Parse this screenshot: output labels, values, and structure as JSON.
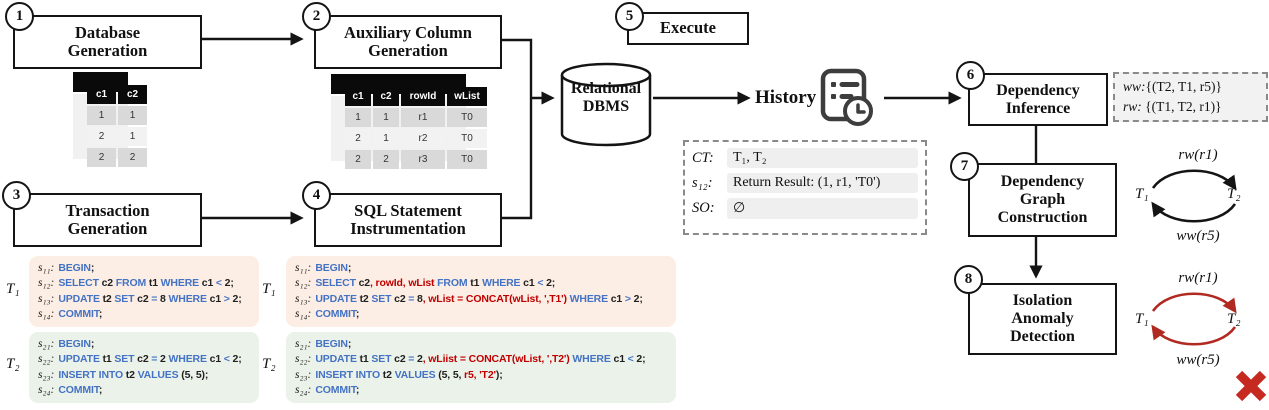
{
  "colors": {
    "kw": "#4472c4",
    "ident": "#1f1f1f",
    "add": "#c00000",
    "t1bg": "#fceee4",
    "t2bg": "#ebf2e9",
    "graphred": "#b02a21",
    "xred": "#c5291f"
  },
  "boxes": {
    "b1": {
      "num": "1",
      "l1": "Database",
      "l2": "Generation"
    },
    "b2": {
      "num": "2",
      "l1": "Auxiliary Column",
      "l2": "Generation"
    },
    "b3": {
      "num": "3",
      "l1": "Transaction",
      "l2": "Generation"
    },
    "b4": {
      "num": "4",
      "l1": "SQL Statement",
      "l2": "Instrumentation"
    },
    "b5": {
      "num": "5",
      "l1": "Execute"
    },
    "b6": {
      "num": "6",
      "l1": "Dependency",
      "l2": "Inference"
    },
    "b7": {
      "num": "7",
      "l1": "Dependency",
      "l2": "Graph",
      "l3": "Construction"
    },
    "b8": {
      "num": "8",
      "l1": "Isolation",
      "l2": "Anomaly",
      "l3": "Detection"
    }
  },
  "dbms": {
    "l1": "Relational",
    "l2": "DBMS"
  },
  "history_label": "History",
  "tables": {
    "db": {
      "headers": [
        "c1",
        "c2"
      ],
      "rows": [
        [
          "1",
          "1"
        ],
        [
          "2",
          "1"
        ],
        [
          "2",
          "2"
        ]
      ]
    },
    "aux": {
      "headers": [
        "c1",
        "c2",
        "rowId",
        "wList"
      ],
      "rows": [
        [
          "1",
          "1",
          "r1",
          "T0"
        ],
        [
          "2",
          "1",
          "r2",
          "T0"
        ],
        [
          "2",
          "2",
          "r3",
          "T0"
        ]
      ]
    }
  },
  "deps": {
    "ww_label": "ww:",
    "ww_set": "{(T2, T1, r5)}",
    "rw_label": "rw:",
    "rw_set": " {(T1, T2, r1)}"
  },
  "ct_box": {
    "rows": [
      {
        "label": "CT:",
        "value": "T₁, T₂"
      },
      {
        "label": "s₁₂:",
        "value": "Return Result: (1, r1, 'T0')"
      },
      {
        "label": "SO:",
        "value": "∅"
      }
    ]
  },
  "graphs": {
    "black": {
      "top": "rw(r1)",
      "bottom": "ww(r5)",
      "left": "T₁",
      "right": "T₂"
    },
    "red": {
      "top": "rw(r1)",
      "bottom": "ww(r5)",
      "left": "T₁",
      "right": "T₂"
    }
  },
  "sql": {
    "left_t1": {
      "label": "T₁",
      "lines": [
        {
          "s": "s₁₁:",
          "toks": [
            [
              "kw",
              "BEGIN"
            ],
            [
              "id",
              ";"
            ]
          ]
        },
        {
          "s": "s₁₂:",
          "toks": [
            [
              "kw",
              "SELECT "
            ],
            [
              "id",
              "c2 "
            ],
            [
              "kw",
              "FROM "
            ],
            [
              "id",
              "t1 "
            ],
            [
              "kw",
              "WHERE "
            ],
            [
              "id",
              "c1 "
            ],
            [
              "kw",
              "< "
            ],
            [
              "id",
              "2;"
            ]
          ]
        },
        {
          "s": "s₁₃:",
          "toks": [
            [
              "kw",
              "UPDATE "
            ],
            [
              "id",
              "t2 "
            ],
            [
              "kw",
              "SET "
            ],
            [
              "id",
              "c2 "
            ],
            [
              "kw",
              "= "
            ],
            [
              "id",
              "8 "
            ],
            [
              "kw",
              "WHERE "
            ],
            [
              "id",
              "c1 "
            ],
            [
              "kw",
              "> "
            ],
            [
              "id",
              "2;"
            ]
          ]
        },
        {
          "s": "s₁₄:",
          "toks": [
            [
              "kw",
              "COMMIT"
            ],
            [
              "id",
              ";"
            ]
          ]
        }
      ]
    },
    "left_t2": {
      "label": "T₂",
      "lines": [
        {
          "s": "s₂₁:",
          "toks": [
            [
              "kw",
              "BEGIN"
            ],
            [
              "id",
              ";"
            ]
          ]
        },
        {
          "s": "s₂₂:",
          "toks": [
            [
              "kw",
              "UPDATE "
            ],
            [
              "id",
              "t1 "
            ],
            [
              "kw",
              "SET "
            ],
            [
              "id",
              "c2 "
            ],
            [
              "kw",
              "= "
            ],
            [
              "id",
              "2 "
            ],
            [
              "kw",
              "WHERE "
            ],
            [
              "id",
              "c1 "
            ],
            [
              "kw",
              "< "
            ],
            [
              "id",
              "2;"
            ]
          ]
        },
        {
          "s": "s₂₃:",
          "toks": [
            [
              "kw",
              "INSERT INTO "
            ],
            [
              "id",
              "t2 "
            ],
            [
              "kw",
              "VALUES "
            ],
            [
              "id",
              "(5, 5);"
            ]
          ]
        },
        {
          "s": "s₂₄:",
          "toks": [
            [
              "kw",
              "COMMIT"
            ],
            [
              "id",
              ";"
            ]
          ]
        }
      ]
    },
    "right_t1": {
      "label": "T₁",
      "lines": [
        {
          "s": "s₁₁:",
          "toks": [
            [
              "kw",
              "BEGIN"
            ],
            [
              "id",
              ";"
            ]
          ]
        },
        {
          "s": "s₁₂:",
          "toks": [
            [
              "kw",
              "SELECT "
            ],
            [
              "id",
              "c2"
            ],
            [
              "add",
              ", rowId, wList "
            ],
            [
              "kw",
              "FROM "
            ],
            [
              "id",
              "t1 "
            ],
            [
              "kw",
              "WHERE "
            ],
            [
              "id",
              "c1 "
            ],
            [
              "kw",
              "< "
            ],
            [
              "id",
              "2;"
            ]
          ]
        },
        {
          "s": "s₁₃:",
          "toks": [
            [
              "kw",
              "UPDATE "
            ],
            [
              "id",
              "t2 "
            ],
            [
              "kw",
              "SET "
            ],
            [
              "id",
              "c2 "
            ],
            [
              "kw",
              "= "
            ],
            [
              "id",
              "8"
            ],
            [
              "add",
              ", wList = CONCAT(wList, ',T1') "
            ],
            [
              "kw",
              "WHERE "
            ],
            [
              "id",
              "c1 "
            ],
            [
              "kw",
              "> "
            ],
            [
              "id",
              "2;"
            ]
          ]
        },
        {
          "s": "s₁₄:",
          "toks": [
            [
              "kw",
              "COMMIT"
            ],
            [
              "id",
              ";"
            ]
          ]
        }
      ]
    },
    "right_t2": {
      "label": "T₂",
      "lines": [
        {
          "s": "s₂₁:",
          "toks": [
            [
              "kw",
              "BEGIN"
            ],
            [
              "id",
              ";"
            ]
          ]
        },
        {
          "s": "s₂₂:",
          "toks": [
            [
              "kw",
              "UPDATE "
            ],
            [
              "id",
              "t1 "
            ],
            [
              "kw",
              "SET "
            ],
            [
              "id",
              "c2 "
            ],
            [
              "kw",
              "= "
            ],
            [
              "id",
              "2"
            ],
            [
              "add",
              ", wLiist = CONCAT(wList, ',T2') "
            ],
            [
              "kw",
              "WHERE "
            ],
            [
              "id",
              "c1 "
            ],
            [
              "kw",
              "< "
            ],
            [
              "id",
              "2;"
            ]
          ]
        },
        {
          "s": "s₂₃:",
          "toks": [
            [
              "kw",
              "INSERT INTO "
            ],
            [
              "id",
              "t2 "
            ],
            [
              "kw",
              "VALUES "
            ],
            [
              "id",
              "(5, 5, "
            ],
            [
              "add",
              "r5, 'T2'"
            ],
            [
              "id",
              ");"
            ]
          ]
        },
        {
          "s": "s₂₄:",
          "toks": [
            [
              "kw",
              "COMMIT"
            ],
            [
              "id",
              ";"
            ]
          ]
        }
      ]
    }
  }
}
